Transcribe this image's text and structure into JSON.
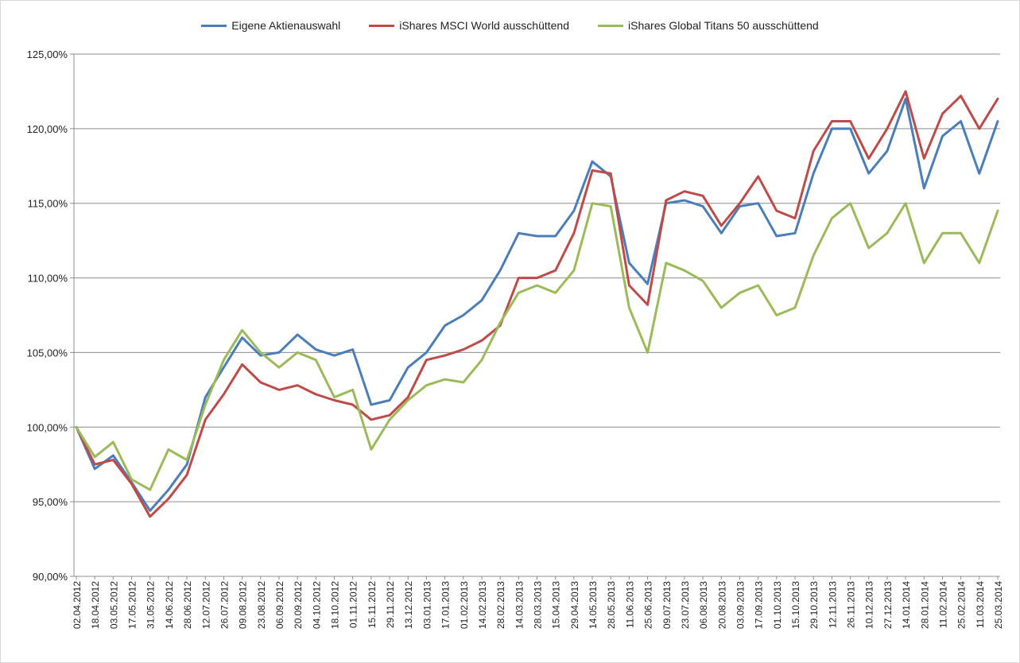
{
  "chart_data": {
    "type": "line",
    "title": "",
    "xlabel": "",
    "ylabel": "",
    "ylim": [
      0.9,
      1.25
    ],
    "y_ticks": [
      0.9,
      0.95,
      1.0,
      1.05,
      1.1,
      1.15,
      1.2,
      1.25
    ],
    "y_tick_labels": [
      "90,00%",
      "95,00%",
      "100,00%",
      "105,00%",
      "110,00%",
      "115,00%",
      "120,00%",
      "125,00%"
    ],
    "grid": "horizontal",
    "legend_position": "top",
    "x": [
      "02.04.2012",
      "18.04.2012",
      "03.05.2012",
      "17.05.2012",
      "31.05.2012",
      "14.06.2012",
      "28.06.2012",
      "12.07.2012",
      "26.07.2012",
      "09.08.2012",
      "23.08.2012",
      "06.09.2012",
      "20.09.2012",
      "04.10.2012",
      "18.10.2012",
      "01.11.2012",
      "15.11.2012",
      "29.11.2012",
      "13.12.2012",
      "03.01.2013",
      "17.01.2013",
      "01.02.2013",
      "14.02.2013",
      "28.02.2013",
      "14.03.2013",
      "28.03.2013",
      "15.04.2013",
      "29.04.2013",
      "14.05.2013",
      "28.05.2013",
      "11.06.2013",
      "25.06.2013",
      "09.07.2013",
      "23.07.2013",
      "06.08.2013",
      "20.08.2013",
      "03.09.2013",
      "17.09.2013",
      "01.10.2013",
      "15.10.2013",
      "29.10.2013",
      "12.11.2013",
      "26.11.2013",
      "10.12.2013",
      "27.12.2013",
      "14.01.2014",
      "28.01.2014",
      "11.02.2014",
      "25.02.2014",
      "11.03.2014",
      "25.03.2014"
    ],
    "series": [
      {
        "name": "Eigene Aktienauswahl",
        "color": "#4a7ebb",
        "values": [
          1.0,
          0.972,
          0.981,
          0.963,
          0.944,
          0.958,
          0.975,
          1.02,
          1.04,
          1.06,
          1.048,
          1.05,
          1.062,
          1.052,
          1.048,
          1.052,
          1.015,
          1.018,
          1.04,
          1.05,
          1.068,
          1.075,
          1.085,
          1.105,
          1.13,
          1.128,
          1.128,
          1.145,
          1.178,
          1.168,
          1.11,
          1.096,
          1.15,
          1.152,
          1.148,
          1.13,
          1.148,
          1.15,
          1.128,
          1.13,
          1.17,
          1.2,
          1.2,
          1.17,
          1.185,
          1.22,
          1.16,
          1.195,
          1.205,
          1.17,
          1.205
        ]
      },
      {
        "name": "iShares MSCI World ausschüttend",
        "color": "#be4b48",
        "values": [
          1.0,
          0.975,
          0.978,
          0.962,
          0.94,
          0.952,
          0.968,
          1.005,
          1.022,
          1.042,
          1.03,
          1.025,
          1.028,
          1.022,
          1.018,
          1.015,
          1.005,
          1.008,
          1.02,
          1.045,
          1.048,
          1.052,
          1.058,
          1.068,
          1.1,
          1.1,
          1.105,
          1.13,
          1.172,
          1.17,
          1.095,
          1.082,
          1.152,
          1.158,
          1.155,
          1.135,
          1.15,
          1.168,
          1.145,
          1.14,
          1.185,
          1.205,
          1.205,
          1.18,
          1.2,
          1.225,
          1.18,
          1.21,
          1.222,
          1.2,
          1.22
        ]
      },
      {
        "name": "iShares Global Titans 50 ausschüttend",
        "color": "#9bbb59",
        "values": [
          1.0,
          0.98,
          0.99,
          0.965,
          0.958,
          0.985,
          0.978,
          1.015,
          1.045,
          1.065,
          1.05,
          1.04,
          1.05,
          1.045,
          1.02,
          1.025,
          0.985,
          1.005,
          1.018,
          1.028,
          1.032,
          1.03,
          1.045,
          1.07,
          1.09,
          1.095,
          1.09,
          1.105,
          1.15,
          1.148,
          1.08,
          1.05,
          1.11,
          1.105,
          1.098,
          1.08,
          1.09,
          1.095,
          1.075,
          1.08,
          1.115,
          1.14,
          1.15,
          1.12,
          1.13,
          1.15,
          1.11,
          1.13,
          1.13,
          1.11,
          1.145
        ]
      }
    ]
  }
}
